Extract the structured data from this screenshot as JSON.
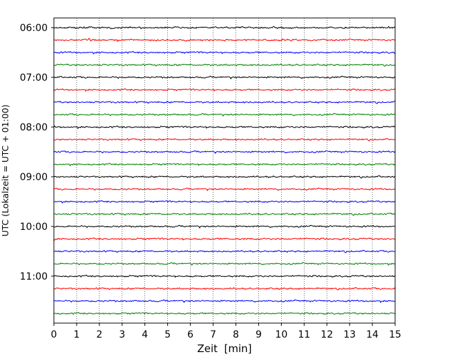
{
  "chart_data": {
    "type": "line",
    "title": "",
    "xlabel": "Zeit  [min]",
    "ylabel": "UTC (Lokalzeit = UTC + 01:00)",
    "xlim": [
      0,
      15
    ],
    "x_ticks": [
      0,
      1,
      2,
      3,
      4,
      5,
      6,
      7,
      8,
      9,
      10,
      11,
      12,
      13,
      14,
      15
    ],
    "y_tick_labels": [
      "06:00",
      "07:00",
      "08:00",
      "09:00",
      "10:00",
      "11:00"
    ],
    "trace_start_times": [
      "06:00",
      "06:15",
      "06:30",
      "06:45",
      "07:00",
      "07:15",
      "07:30",
      "07:45",
      "08:00",
      "08:15",
      "08:30",
      "08:45",
      "09:00",
      "09:15",
      "09:30",
      "09:45",
      "10:00",
      "10:15",
      "10:30",
      "10:45",
      "11:00",
      "11:15",
      "11:30",
      "11:45"
    ],
    "trace_colors": [
      "#000000",
      "#ff0000",
      "#0000ff",
      "#008000"
    ],
    "vertical_grid": "dotted, every 1 min",
    "trace_duration_min": 15
  }
}
